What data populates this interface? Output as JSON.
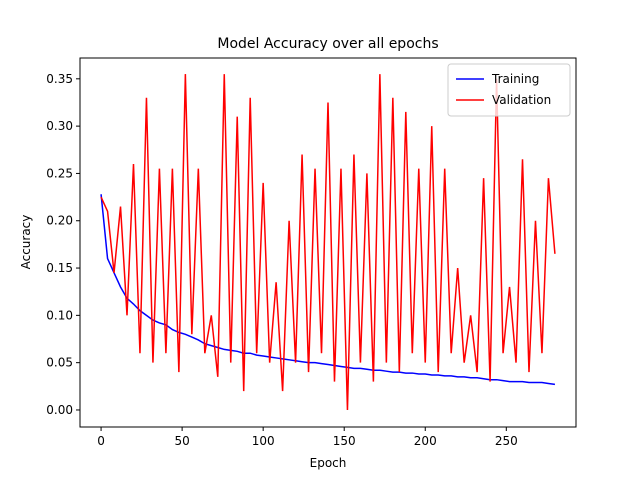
{
  "chart_data": {
    "type": "line",
    "title": "Model Accuracy over all epochs",
    "x_label": "Epoch",
    "y_label": "Accuracy",
    "x": [
      0,
      4,
      8,
      12,
      16,
      20,
      24,
      28,
      32,
      36,
      40,
      44,
      48,
      52,
      56,
      60,
      64,
      68,
      72,
      76,
      80,
      84,
      88,
      92,
      96,
      100,
      104,
      108,
      112,
      116,
      120,
      124,
      128,
      132,
      136,
      140,
      144,
      148,
      152,
      156,
      160,
      164,
      168,
      172,
      176,
      180,
      184,
      188,
      192,
      196,
      200,
      204,
      208,
      212,
      216,
      220,
      224,
      228,
      232,
      236,
      240,
      244,
      248,
      252,
      256,
      260,
      264,
      268,
      272,
      276,
      280
    ],
    "series": [
      {
        "name": "Training",
        "color": "#0000ff",
        "values": [
          0.228,
          0.16,
          0.145,
          0.13,
          0.118,
          0.112,
          0.105,
          0.1,
          0.095,
          0.092,
          0.09,
          0.085,
          0.082,
          0.08,
          0.077,
          0.074,
          0.07,
          0.068,
          0.066,
          0.064,
          0.063,
          0.062,
          0.06,
          0.06,
          0.058,
          0.057,
          0.056,
          0.055,
          0.054,
          0.053,
          0.052,
          0.051,
          0.05,
          0.05,
          0.049,
          0.048,
          0.047,
          0.046,
          0.045,
          0.044,
          0.044,
          0.043,
          0.042,
          0.042,
          0.041,
          0.04,
          0.04,
          0.039,
          0.039,
          0.038,
          0.038,
          0.037,
          0.037,
          0.036,
          0.036,
          0.035,
          0.035,
          0.034,
          0.034,
          0.033,
          0.032,
          0.032,
          0.031,
          0.03,
          0.03,
          0.03,
          0.029,
          0.029,
          0.029,
          0.028,
          0.027
        ]
      },
      {
        "name": "Validation",
        "color": "#ff0000",
        "values": [
          0.225,
          0.21,
          0.145,
          0.215,
          0.1,
          0.26,
          0.06,
          0.33,
          0.05,
          0.255,
          0.06,
          0.255,
          0.04,
          0.355,
          0.08,
          0.255,
          0.06,
          0.1,
          0.035,
          0.355,
          0.05,
          0.31,
          0.02,
          0.33,
          0.06,
          0.24,
          0.05,
          0.135,
          0.02,
          0.2,
          0.05,
          0.27,
          0.04,
          0.255,
          0.06,
          0.325,
          0.03,
          0.255,
          0.0,
          0.27,
          0.05,
          0.25,
          0.03,
          0.355,
          0.05,
          0.33,
          0.04,
          0.315,
          0.06,
          0.255,
          0.05,
          0.3,
          0.04,
          0.255,
          0.06,
          0.15,
          0.05,
          0.1,
          0.04,
          0.245,
          0.03,
          0.35,
          0.06,
          0.13,
          0.05,
          0.265,
          0.04,
          0.2,
          0.06,
          0.245,
          0.165
        ]
      }
    ],
    "xlim": [
      -13,
      293
    ],
    "xticks": [
      0,
      50,
      100,
      150,
      200,
      250
    ],
    "ylim": [
      -0.018,
      0.372
    ],
    "yticks": [
      {
        "value": 0,
        "label": "0.00"
      },
      0.05,
      {
        "value": 0.1,
        "label": "0.10"
      },
      0.15,
      {
        "value": 0.2,
        "label": "0.20"
      },
      0.25,
      {
        "value": 0.3,
        "label": "0.30"
      },
      0.35
    ],
    "legend": "upper right",
    "grid": false
  }
}
